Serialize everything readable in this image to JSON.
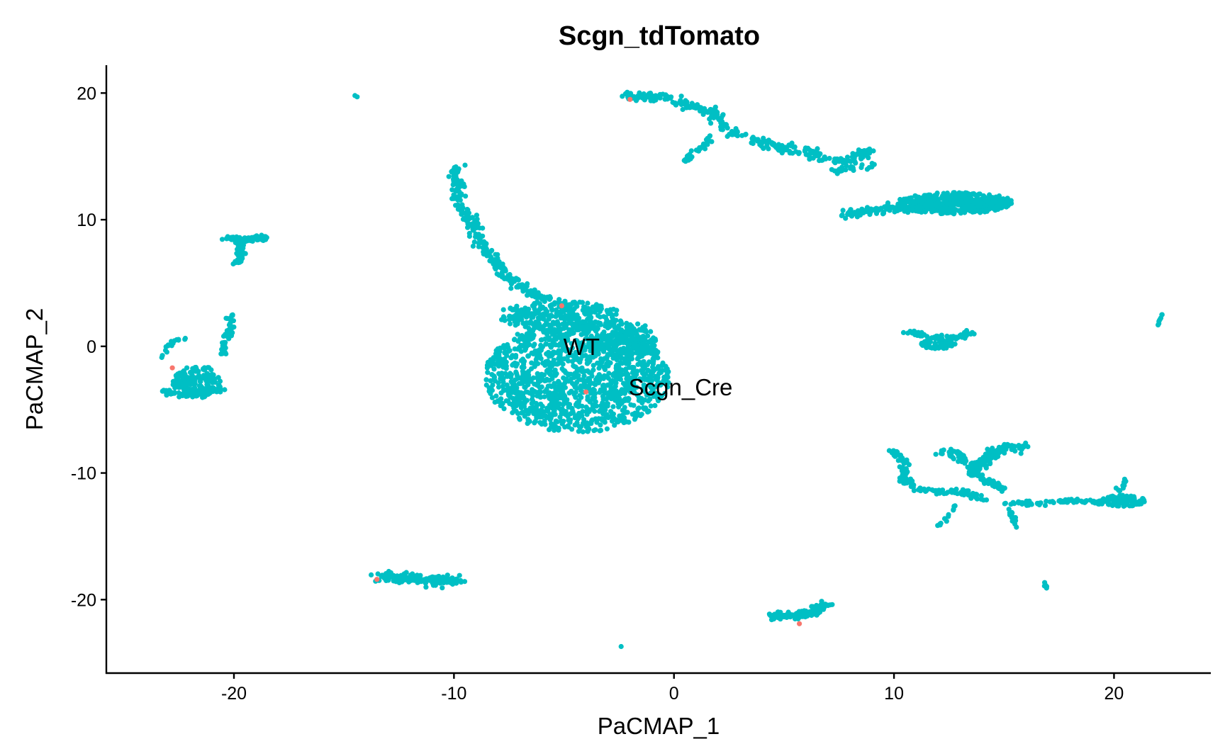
{
  "chart_data": {
    "type": "scatter",
    "title": "Scgn_tdTomato",
    "xlabel": "PaCMAP_1",
    "ylabel": "PaCMAP_2",
    "xlim": [
      -25.8,
      24.4
    ],
    "ylim": [
      -25.8,
      22.2
    ],
    "xticks": [
      -20,
      -10,
      0,
      10,
      20
    ],
    "yticks": [
      20,
      10,
      0,
      -10,
      -20
    ],
    "grid": false,
    "legend": "none",
    "colors": {
      "Scgn_Cre": "#F8766D",
      "WT": "#00BFC4"
    },
    "annotations": [
      {
        "text": "WT",
        "x": -4.2,
        "y": 0
      },
      {
        "text": "Scgn_Cre",
        "x": 0.3,
        "y": -3.2
      }
    ],
    "series": [
      {
        "name": "WT",
        "color": "#00BFC4",
        "clusters": [
          {
            "shape": "ellipse",
            "cx": -4.4,
            "cy": -2.4,
            "rx": 4.2,
            "ry": 4.4,
            "n": 1400
          },
          {
            "shape": "ellipse",
            "cx": -5.2,
            "cy": 2.4,
            "rx": 2.8,
            "ry": 1.2,
            "n": 260
          },
          {
            "shape": "ellipse",
            "cx": -2.2,
            "cy": 0.5,
            "rx": 1.4,
            "ry": 1.6,
            "n": 160
          },
          {
            "shape": "path",
            "points": [
              [
                -9.9,
                14.1
              ],
              [
                -9.8,
                11.5
              ],
              [
                -9.2,
                9.8
              ],
              [
                -8.5,
                7.5
              ],
              [
                -7.5,
                5.3
              ],
              [
                -6.5,
                4.2
              ],
              [
                -5.5,
                3.6
              ]
            ],
            "spread": 0.28,
            "n": 260
          },
          {
            "shape": "ellipse",
            "cx": 12.7,
            "cy": 11.3,
            "rx": 2.6,
            "ry": 0.85,
            "n": 380
          },
          {
            "shape": "path",
            "points": [
              [
                7.8,
                10.5
              ],
              [
                9.5,
                10.8
              ],
              [
                11,
                11
              ],
              [
                13,
                11.4
              ],
              [
                15.3,
                11.4
              ]
            ],
            "spread": 0.32,
            "n": 200
          },
          {
            "shape": "path",
            "points": [
              [
                -2.2,
                19.7
              ],
              [
                -0.5,
                19.7
              ],
              [
                0.8,
                19
              ],
              [
                1.7,
                18.5
              ],
              [
                2.3,
                17.2
              ],
              [
                3.6,
                16.3
              ],
              [
                5.3,
                15.5
              ],
              [
                6.7,
                15.3
              ]
            ],
            "spread": 0.3,
            "n": 240
          },
          {
            "shape": "path",
            "points": [
              [
                0.5,
                14.7
              ],
              [
                1.2,
                15.7
              ],
              [
                1.8,
                16.8
              ]
            ],
            "spread": 0.18,
            "n": 30
          },
          {
            "shape": "path",
            "points": [
              [
                6.5,
                14.8
              ],
              [
                7.7,
                14.6
              ],
              [
                8.5,
                15.2
              ],
              [
                9.2,
                15.5
              ]
            ],
            "spread": 0.25,
            "n": 60
          },
          {
            "shape": "path",
            "points": [
              [
                7.3,
                13.8
              ],
              [
                8.2,
                14.2
              ],
              [
                9.0,
                14.3
              ]
            ],
            "spread": 0.2,
            "n": 25
          },
          {
            "shape": "path",
            "points": [
              [
                -20.3,
                8.6
              ],
              [
                -19.5,
                8.4
              ],
              [
                -18.6,
                8.6
              ]
            ],
            "spread": 0.18,
            "n": 70
          },
          {
            "shape": "path",
            "points": [
              [
                -19.8,
                8.2
              ],
              [
                -19.6,
                7.3
              ],
              [
                -19.9,
                6.5
              ]
            ],
            "spread": 0.2,
            "n": 40
          },
          {
            "shape": "ellipse",
            "cx": -21.7,
            "cy": -2.8,
            "rx": 1.1,
            "ry": 1.3,
            "n": 160
          },
          {
            "shape": "path",
            "points": [
              [
                -23.3,
                -3.6
              ],
              [
                -22,
                -3.8
              ],
              [
                -20.6,
                -3.4
              ]
            ],
            "spread": 0.2,
            "n": 60
          },
          {
            "shape": "path",
            "points": [
              [
                -20.6,
                -0.8
              ],
              [
                -20.3,
                0.8
              ],
              [
                -20.1,
                2.5
              ]
            ],
            "spread": 0.18,
            "n": 40
          },
          {
            "shape": "path",
            "points": [
              [
                -23.2,
                -0.8
              ],
              [
                -23.0,
                0
              ],
              [
                -22.7,
                0.5
              ],
              [
                -22.3,
                0.6
              ]
            ],
            "spread": 0.15,
            "n": 18
          },
          {
            "shape": "path",
            "points": [
              [
                -13.5,
                -18.2
              ],
              [
                -12,
                -18.3
              ],
              [
                -10.5,
                -18.5
              ],
              [
                -9.8,
                -18.5
              ]
            ],
            "spread": 0.3,
            "n": 170
          },
          {
            "shape": "path",
            "points": [
              [
                4.3,
                -21.3
              ],
              [
                5.5,
                -21.3
              ],
              [
                6.3,
                -21.0
              ],
              [
                7.1,
                -20.2
              ]
            ],
            "spread": 0.25,
            "n": 110
          },
          {
            "shape": "path",
            "points": [
              [
                10.5,
                1.2
              ],
              [
                11.5,
                0.8
              ],
              [
                12.5,
                0.6
              ],
              [
                13.6,
                1.1
              ]
            ],
            "spread": 0.18,
            "n": 70
          },
          {
            "shape": "ellipse",
            "cx": 12.0,
            "cy": 0.2,
            "rx": 0.8,
            "ry": 0.4,
            "n": 50
          },
          {
            "shape": "path",
            "points": [
              [
                9.9,
                -8.2
              ],
              [
                10.5,
                -9.2
              ],
              [
                10.4,
                -10.5
              ],
              [
                11.2,
                -11.3
              ],
              [
                12,
                -11.5
              ],
              [
                13.2,
                -11.5
              ],
              [
                14.2,
                -12.2
              ]
            ],
            "spread": 0.18,
            "n": 130
          },
          {
            "shape": "path",
            "points": [
              [
                12.0,
                -8.3
              ],
              [
                12.8,
                -8.5
              ],
              [
                13.4,
                -9.2
              ],
              [
                14.0,
                -10.5
              ],
              [
                15,
                -11.2
              ]
            ],
            "spread": 0.2,
            "n": 90
          },
          {
            "shape": "path",
            "points": [
              [
                13.6,
                -10
              ],
              [
                14.5,
                -8.4
              ],
              [
                15.2,
                -7.7
              ],
              [
                15.8,
                -8.0
              ]
            ],
            "spread": 0.3,
            "n": 120
          },
          {
            "shape": "path",
            "points": [
              [
                14.8,
                -12.3
              ],
              [
                16.5,
                -12.4
              ],
              [
                18,
                -12.2
              ],
              [
                19.5,
                -12.3
              ]
            ],
            "spread": 0.15,
            "n": 70
          },
          {
            "shape": "ellipse",
            "cx": 20.4,
            "cy": -12.2,
            "rx": 1.0,
            "ry": 0.45,
            "n": 90
          },
          {
            "shape": "path",
            "points": [
              [
                20.2,
                -11.5
              ],
              [
                20.6,
                -10.4
              ]
            ],
            "spread": 0.12,
            "n": 12
          },
          {
            "shape": "path",
            "points": [
              [
                15.2,
                -12.8
              ],
              [
                15.5,
                -13.8
              ],
              [
                15.6,
                -14.4
              ]
            ],
            "spread": 0.12,
            "n": 16
          },
          {
            "shape": "path",
            "points": [
              [
                12.0,
                -14.3
              ],
              [
                12.4,
                -13.5
              ],
              [
                12.8,
                -12.5
              ]
            ],
            "spread": 0.1,
            "n": 14
          },
          {
            "shape": "path",
            "points": [
              [
                16.8,
                -18.5
              ],
              [
                16.9,
                -19.2
              ]
            ],
            "spread": 0.05,
            "n": 8
          },
          {
            "shape": "path",
            "points": [
              [
                22,
                1.6
              ],
              [
                22.2,
                2.6
              ]
            ],
            "spread": 0.05,
            "n": 8
          },
          {
            "shape": "point",
            "x": -14.5,
            "y": 19.8
          },
          {
            "shape": "point",
            "x": -14.4,
            "y": 19.7
          },
          {
            "shape": "point",
            "x": -2.4,
            "y": -23.7
          }
        ]
      },
      {
        "name": "Scgn_Cre",
        "color": "#F8766D",
        "points": [
          [
            -2.0,
            19.5
          ],
          [
            -5.1,
            3.2
          ],
          [
            -22.8,
            -1.7
          ],
          [
            -13.5,
            -18.4
          ],
          [
            5.7,
            -21.9
          ],
          [
            -4.0,
            -3.6
          ]
        ]
      }
    ]
  }
}
